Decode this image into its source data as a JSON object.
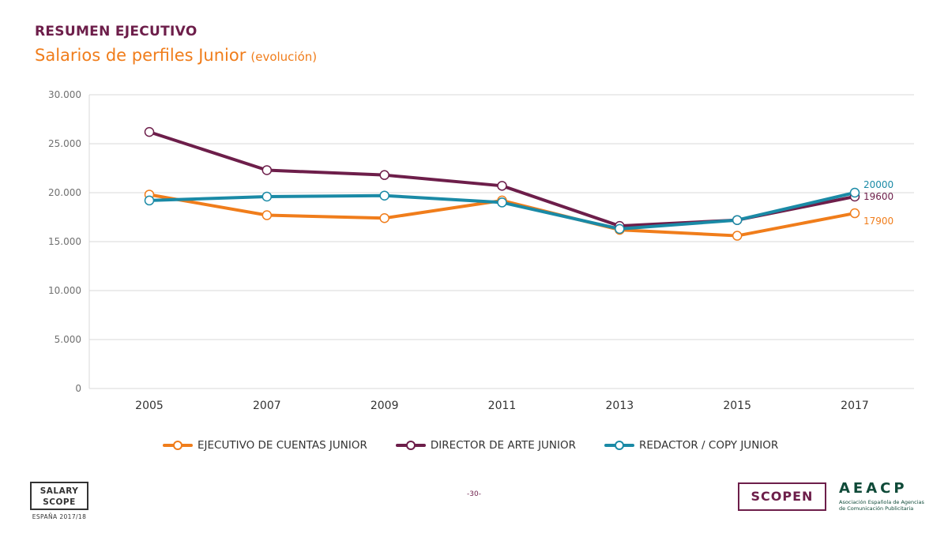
{
  "header": {
    "title": "RESUMEN EJECUTIVO",
    "subtitle": "Salarios de perfiles Junior",
    "subtitle_paren": "(evolución)"
  },
  "chart_data": {
    "type": "line",
    "x": [
      "2005",
      "2007",
      "2009",
      "2011",
      "2013",
      "2015",
      "2017"
    ],
    "ylim": [
      0,
      30000
    ],
    "yticks": [
      0,
      5000,
      10000,
      15000,
      20000,
      25000,
      30000
    ],
    "ytick_labels": [
      "0",
      "5.000",
      "10.000",
      "15.000",
      "20.000",
      "25.000",
      "30.000"
    ],
    "grid": true,
    "legend_position": "bottom",
    "series": [
      {
        "name": "EJECUTIVO DE CUENTAS JUNIOR",
        "color": "#f07d1b",
        "values": [
          19800,
          17700,
          17400,
          19200,
          16200,
          15600,
          17900
        ],
        "end_label": "17900"
      },
      {
        "name": "DIRECTOR DE ARTE JUNIOR",
        "color": "#6d1e4a",
        "values": [
          26200,
          22300,
          21800,
          20700,
          16600,
          17200,
          19600
        ],
        "end_label": "19600"
      },
      {
        "name": "REDACTOR / COPY JUNIOR",
        "color": "#1a8aa6",
        "values": [
          19200,
          19600,
          19700,
          19000,
          16300,
          17200,
          20000
        ],
        "end_label": "20000"
      }
    ]
  },
  "footer": {
    "salary_line1": "SALARY",
    "salary_line2": "SCOPE",
    "salary_sub": "ESPAÑA 2017/18",
    "page_number": "-30-",
    "scopen": "SCOPEN",
    "aeacp": "AEACP",
    "aeacp_sub_line1": "Asociación Española de Agencias",
    "aeacp_sub_line2": "de Comunicación Publicitaria"
  }
}
